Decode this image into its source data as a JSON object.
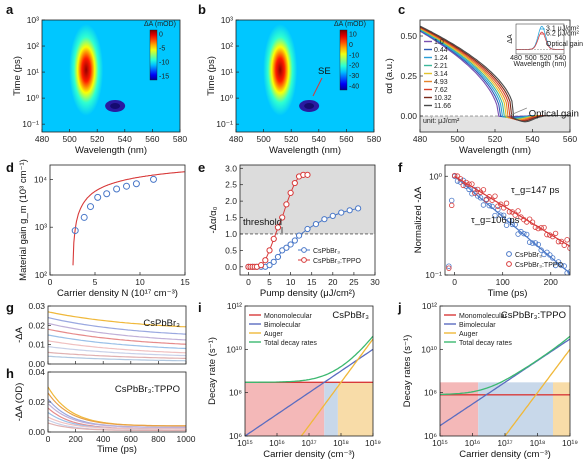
{
  "figure": {
    "panels": [
      "a",
      "b",
      "c",
      "d",
      "e",
      "f",
      "g",
      "h",
      "i",
      "j"
    ]
  },
  "chart_data": [
    {
      "panel": "a",
      "type": "heatmap",
      "xlabel": "Wavelength (nm)",
      "ylabel": "Time (ps)",
      "xticks": [
        "480",
        "500",
        "520",
        "540",
        "560",
        "580"
      ],
      "yticks": [
        "10^3",
        "10^2",
        "10^1",
        "10^0",
        "10^-1"
      ],
      "colorbar": {
        "title": "ΔA (mOD)",
        "ticks": [
          "0",
          "-5",
          "-10",
          "-15"
        ]
      },
      "features": [
        {
          "kind": "bleach",
          "center_nm": 512,
          "t_range_ps": [
            0.3,
            1000
          ]
        },
        {
          "kind": "positive-spot",
          "center_nm": 533,
          "t_ps": 0.5
        }
      ]
    },
    {
      "panel": "b",
      "type": "heatmap",
      "xlabel": "Wavelength (nm)",
      "ylabel": "Time (ps)",
      "xticks": [
        "480",
        "500",
        "520",
        "540",
        "560",
        "580"
      ],
      "yticks": [
        "10^3",
        "10^2",
        "10^1",
        "10^0",
        "10^-1"
      ],
      "colorbar": {
        "title": "ΔA (mOD)",
        "ticks": [
          "10",
          "0",
          "-10",
          "-20",
          "-30",
          "-40"
        ]
      },
      "annotation": "SE",
      "features": [
        {
          "kind": "bleach",
          "center_nm": 512,
          "t_range_ps": [
            0.3,
            1000
          ]
        },
        {
          "kind": "positive-spot",
          "center_nm": 533,
          "t_ps": 0.5
        }
      ]
    },
    {
      "panel": "c",
      "type": "line",
      "xlabel": "Wavelength (nm)",
      "ylabel": "αd (a.u.)",
      "xlim": [
        480,
        560
      ],
      "xticks": [
        "480",
        "500",
        "520",
        "540",
        "560"
      ],
      "ylim": [
        -0.1,
        0.6
      ],
      "yticks": [
        "0.00",
        "0.25",
        "0.50"
      ],
      "unit_label": "unit: μJ/cm²",
      "annotation": "Optical gain",
      "legend": [
        "1.0",
        "0.44",
        "1.24",
        "2.21",
        "3.14",
        "4.93",
        "7.62",
        "10.32",
        "11.66"
      ],
      "series_colors": [
        "#7a4fb0",
        "#2e5bb5",
        "#2a9ed8",
        "#3cb89a",
        "#e3c32b",
        "#e6842a",
        "#d8402a",
        "#7a2a1a",
        "#4a4a4a"
      ],
      "crossing_nm": [
        522,
        523,
        524,
        525,
        526,
        527,
        528,
        529,
        530
      ],
      "min_values": [
        -0.004,
        -0.008,
        -0.012,
        -0.016,
        -0.02,
        -0.024,
        -0.028,
        -0.032,
        -0.036
      ],
      "inset": {
        "xlabel": "Wavelength (nm)",
        "ylabel": "ΔA",
        "xticks": [
          "480",
          "500",
          "520",
          "540"
        ],
        "legend": [
          "3.1 μJ/cm²",
          "6.2 μJ/cm²"
        ],
        "annotation": "Optical gain",
        "series_colors": [
          "#2aa6dc",
          "#d84040"
        ]
      }
    },
    {
      "panel": "d",
      "type": "scatter",
      "xlabel": "Carrier density N (10^17 cm^-3)",
      "ylabel": "Material gain g_m (10^3 cm^-1)",
      "xlim": [
        0,
        15
      ],
      "xticks": [
        "0",
        "5",
        "10",
        "15"
      ],
      "yscale": "log",
      "ylim": [
        100,
        20000
      ],
      "yticks": [
        "10^2",
        "10^3",
        "10^4"
      ],
      "x": [
        2.8,
        3.8,
        4.5,
        5.3,
        6.3,
        7.4,
        8.5,
        9.6,
        11.5
      ],
      "y": [
        850,
        1600,
        2700,
        4200,
        5000,
        6300,
        7200,
        8100,
        10000
      ],
      "fit": {
        "x0": 2.5,
        "A": 4750,
        "k": 0.23
      }
    },
    {
      "panel": "e",
      "type": "scatter",
      "xlabel": "Pump density (μJ/cm²)",
      "ylabel": "-Δα/α₀",
      "xlim": [
        -2,
        30
      ],
      "xticks": [
        "0",
        "5",
        "10",
        "15",
        "20",
        "25",
        "30"
      ],
      "ylim": [
        -0.25,
        3.1
      ],
      "yticks": [
        "0.0",
        "0.5",
        "1.0",
        "1.5",
        "2.0",
        "2.5",
        "3.0"
      ],
      "threshold_label": "threshold",
      "threshold_y": 1.0,
      "series": [
        {
          "name": "CsPbBr₃",
          "color": "#4a78c8",
          "x": [
            0,
            1,
            2,
            3,
            4,
            5,
            6,
            7,
            8,
            9,
            10,
            11,
            12,
            14,
            16,
            18,
            20,
            22,
            24,
            26
          ],
          "y": [
            0,
            0,
            0,
            0,
            0,
            0.05,
            0.15,
            0.3,
            0.5,
            0.58,
            0.68,
            0.8,
            0.95,
            1.15,
            1.3,
            1.45,
            1.55,
            1.65,
            1.72,
            1.78
          ]
        },
        {
          "name": "CsPbBr₃:TPPO",
          "color": "#d83a3a",
          "x": [
            0,
            0.5,
            1,
            1.5,
            2,
            3,
            4,
            5,
            6,
            7,
            8,
            9,
            10,
            11,
            12,
            13,
            14
          ],
          "y": [
            0,
            0,
            0,
            0,
            0,
            0.05,
            0.2,
            0.5,
            0.85,
            1.2,
            1.5,
            1.9,
            2.25,
            2.55,
            2.75,
            2.8,
            2.8
          ]
        }
      ]
    },
    {
      "panel": "f",
      "type": "scatter",
      "xlabel": "Time (ps)",
      "ylabel": "Normalized -ΔA",
      "xlim": [
        -20,
        240
      ],
      "xticks": [
        "0",
        "100",
        "200"
      ],
      "yscale": "log",
      "ylim": [
        0.1,
        1.3
      ],
      "yticks": [
        "10^-1",
        "10^0"
      ],
      "annotations": [
        {
          "text": "τ_g=147 ps",
          "color": "#d83a3a"
        },
        {
          "text": "τ_g=106 ps",
          "color": "#4a78c8"
        }
      ],
      "series": [
        {
          "name": "CsPbBr₃",
          "color": "#4a78c8",
          "tau_ps": 106
        },
        {
          "name": "CsPbBr₃:TPPO",
          "color": "#d83a3a",
          "tau_ps": 147
        }
      ]
    },
    {
      "panel": "g",
      "type": "line",
      "xlabel": "",
      "ylabel": "-ΔA",
      "xlim": [
        0,
        1000
      ],
      "ylim": [
        0,
        0.03
      ],
      "yticks": [
        "0.00",
        "0.01",
        "0.02",
        "0.03"
      ],
      "label": "CsPbBr₃",
      "label_color": "#4a78c8",
      "start_values": [
        0.027,
        0.024,
        0.021,
        0.018,
        0.015,
        0.012,
        0.009,
        0.006,
        0.004
      ],
      "end_values": [
        0.017,
        0.013,
        0.01,
        0.008,
        0.006,
        0.004,
        0.003,
        0.002,
        0.001
      ],
      "series_colors": [
        "#f0b83a",
        "#9aa8e0",
        "#c0b0d8",
        "#e68a8a",
        "#9ac0e8",
        "#f0c0c0",
        "#c8d0e8",
        "#e0b0b0",
        "#b0c8e0"
      ]
    },
    {
      "panel": "h",
      "type": "line",
      "xlabel": "Time (ps)",
      "ylabel": "-ΔA (OD)",
      "xlim": [
        0,
        1000
      ],
      "xticks": [
        "0",
        "200",
        "400",
        "600",
        "800",
        "1000"
      ],
      "ylim": [
        0,
        0.04
      ],
      "yticks": [
        "0.00",
        "0.02",
        "0.04"
      ],
      "label": "CsPbBr₃:TPPO",
      "label_color": "#d83a3a",
      "start_values": [
        0.03,
        0.026,
        0.022,
        0.019,
        0.016,
        0.013,
        0.01,
        0.008,
        0.006
      ],
      "end_values": [
        0.004,
        0.004,
        0.003,
        0.003,
        0.002,
        0.002,
        0.002,
        0.001,
        0.001
      ],
      "series_colors": [
        "#f0b83a",
        "#e8a048",
        "#9aa8e0",
        "#c0b0d8",
        "#e68a8a",
        "#9ac0e8",
        "#f0c0c0",
        "#c8d0e8",
        "#e0b0b0"
      ]
    },
    {
      "panel": "i",
      "type": "line",
      "xlabel": "Carrier density (cm^-3)",
      "ylabel": "Decay rate (s^-1)",
      "xscale": "log",
      "yscale": "log",
      "xlim": [
        1000000000000000.0,
        1e+19
      ],
      "ylim": [
        1000000.0,
        1000000000000.0
      ],
      "xticks": [
        "10^15",
        "10^16",
        "10^17",
        "10^18",
        "10^19"
      ],
      "yticks": [
        "10^6",
        "10^8",
        "10^10",
        "10^12"
      ],
      "label": "CsPbBr₃",
      "label_color": "#4a78c8",
      "legend": [
        "Monomolecular",
        "Bimolecular",
        "Auger",
        "Total decay rates"
      ],
      "series_colors": [
        "#d83a3a",
        "#5a6cc0",
        "#f0b83a",
        "#3cb870"
      ],
      "k1": 300000000.0,
      "k2": 1e-09,
      "k3": 3e-28,
      "regions": [
        {
          "color": "#f4b8b8",
          "range": [
            1000000000000000.0,
            3e+17
          ]
        },
        {
          "color": "#c8d8ea",
          "range": [
            3e+17,
            8e+17
          ]
        },
        {
          "color": "#f8dca8",
          "range": [
            8e+17,
            1e+19
          ]
        }
      ]
    },
    {
      "panel": "j",
      "type": "line",
      "xlabel": "Carrier density (cm^-3)",
      "ylabel": "Decay rates (s^-1)",
      "xscale": "log",
      "yscale": "log",
      "xlim": [
        1000000000000000.0,
        1e+19
      ],
      "ylim": [
        1000000.0,
        1000000000000.0
      ],
      "xticks": [
        "10^15",
        "10^16",
        "10^17",
        "10^18",
        "10^19"
      ],
      "yticks": [
        "10^6",
        "10^8",
        "10^10",
        "10^12"
      ],
      "label": "CsPbBr₃:TPPO",
      "label_color": "#d83a3a",
      "legend": [
        "Monomolecular",
        "Bimolecular",
        "Auger",
        "Total decay rates"
      ],
      "series_colors": [
        "#d83a3a",
        "#5a6cc0",
        "#f0b83a",
        "#3cb870"
      ],
      "k1": 80000000.0,
      "k2": 3e-09,
      "k3": 1e-28,
      "regions": [
        {
          "color": "#f4b8b8",
          "range": [
            1000000000000000.0,
            1.5e+16
          ]
        },
        {
          "color": "#c8d8ea",
          "range": [
            1.5e+16,
            3e+18
          ]
        },
        {
          "color": "#f8dca8",
          "range": [
            3e+18,
            1e+19
          ]
        }
      ]
    }
  ]
}
